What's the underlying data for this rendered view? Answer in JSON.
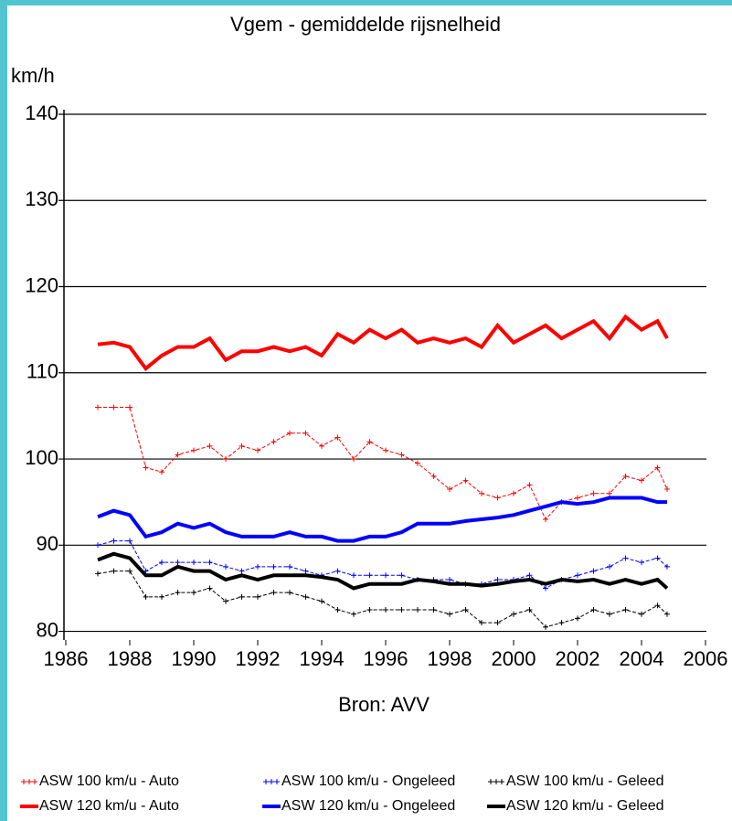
{
  "chart_data": {
    "type": "line",
    "title": "Vgem - gemiddelde rijsnelheid",
    "y_label": "km/h",
    "source": "Bron: AVV",
    "xlim": [
      1986,
      2006
    ],
    "xticks": [
      1986,
      1988,
      1990,
      1992,
      1994,
      1996,
      1998,
      2000,
      2002,
      2004,
      2006
    ],
    "ylim": [
      79,
      140
    ],
    "yticks": [
      80,
      90,
      100,
      110,
      120,
      130,
      140
    ],
    "grid": true,
    "x": [
      1987,
      1987.5,
      1988,
      1988.5,
      1989,
      1989.5,
      1990,
      1990.5,
      1991,
      1991.5,
      1992,
      1992.5,
      1993,
      1993.5,
      1994,
      1994.5,
      1995,
      1995.5,
      1996,
      1996.5,
      1997,
      1997.5,
      1998,
      1998.5,
      1999,
      1999.5,
      2000,
      2000.5,
      2001,
      2001.5,
      2002,
      2002.5,
      2003,
      2003.5,
      2004,
      2004.5,
      2004.8
    ],
    "series": [
      {
        "name": "ASW 100 km/u - Auto",
        "color": "#ff0000",
        "style": "marker",
        "values": [
          106,
          106,
          106,
          99,
          98.5,
          100.5,
          101,
          101.5,
          100,
          101.5,
          101,
          102,
          103,
          103,
          101.5,
          102.5,
          100,
          102,
          101,
          100.5,
          99.5,
          98,
          96.5,
          97.5,
          96,
          95.5,
          96,
          97,
          93,
          95,
          95.5,
          96,
          96,
          98,
          97.5,
          99,
          96.5
        ]
      },
      {
        "name": "ASW 120 km/u - Auto",
        "color": "#ff0000",
        "style": "thick",
        "values": [
          113.3,
          113.5,
          113,
          110.5,
          112,
          113,
          113,
          114,
          111.5,
          112.5,
          112.5,
          113,
          112.5,
          113,
          112,
          114.5,
          113.5,
          115,
          114,
          115,
          113.5,
          114,
          113.5,
          114,
          113,
          115.5,
          113.5,
          114.5,
          115.5,
          114,
          115,
          116,
          114,
          116.5,
          115,
          116,
          114
        ]
      },
      {
        "name": "ASW 100 km/u - Ongeleed",
        "color": "#0000ff",
        "style": "marker",
        "values": [
          90,
          90.5,
          90.5,
          87,
          88,
          88,
          88,
          88,
          87.5,
          87,
          87.5,
          87.5,
          87.5,
          87,
          86.5,
          87,
          86.5,
          86.5,
          86.5,
          86.5,
          86,
          86,
          86,
          85.5,
          85.5,
          86,
          86,
          86.5,
          85,
          86,
          86.5,
          87,
          87.5,
          88.5,
          88,
          88.5,
          87.5
        ]
      },
      {
        "name": "ASW 120 km/u - Ongeleed",
        "color": "#0000ff",
        "style": "thick",
        "values": [
          93.3,
          94,
          93.5,
          91,
          91.5,
          92.5,
          92,
          92.5,
          91.5,
          91,
          91,
          91,
          91.5,
          91,
          91,
          90.5,
          90.5,
          91,
          91,
          91.5,
          92.5,
          92.5,
          92.5,
          92.8,
          93,
          93.2,
          93.5,
          94,
          94.5,
          95,
          94.8,
          95,
          95.5,
          95.5,
          95.5,
          95,
          95
        ]
      },
      {
        "name": "ASW 100 km/u - Geleed",
        "color": "#000000",
        "style": "marker",
        "values": [
          86.7,
          87,
          87,
          84,
          84,
          84.5,
          84.5,
          85,
          83.5,
          84,
          84,
          84.5,
          84.5,
          84,
          83.5,
          82.5,
          82,
          82.5,
          82.5,
          82.5,
          82.5,
          82.5,
          82,
          82.5,
          81,
          81,
          82,
          82.5,
          80.5,
          81,
          81.5,
          82.5,
          82,
          82.5,
          82,
          83,
          82
        ]
      },
      {
        "name": "ASW 120 km/u - Geleed",
        "color": "#000000",
        "style": "thick",
        "values": [
          88.3,
          89,
          88.5,
          86.5,
          86.5,
          87.5,
          87,
          87,
          86,
          86.5,
          86,
          86.5,
          86.5,
          86.5,
          86.3,
          86,
          85,
          85.5,
          85.5,
          85.5,
          86,
          85.8,
          85.5,
          85.5,
          85.3,
          85.5,
          85.8,
          86,
          85.5,
          86,
          85.8,
          86,
          85.5,
          86,
          85.5,
          86,
          85
        ]
      }
    ]
  }
}
